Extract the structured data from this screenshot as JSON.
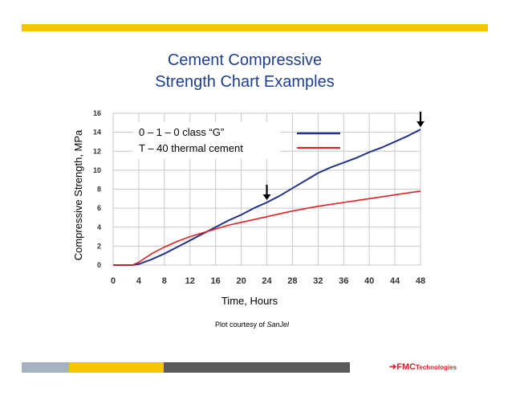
{
  "slide": {
    "title_line1": "Cement Compressive",
    "title_line2": "Strength Chart Examples",
    "caption_prefix": "Plot courtesy of ",
    "caption_source": "SanJel",
    "logo_text": "FMC",
    "logo_suffix": "Technologies"
  },
  "colors": {
    "accent_yellow": "#f5c500",
    "title_blue": "#1f3f93",
    "bar_gray": "#a6b2c2",
    "bar_dark": "#5a5a5a",
    "series_blue": "#24338c",
    "series_red": "#e32222",
    "logo_red": "#d4232a"
  },
  "chart_data": {
    "type": "line",
    "xlabel": "Time, Hours",
    "ylabel": "Compressive  Strength, MPa",
    "xlim": [
      0,
      48
    ],
    "ylim": [
      0,
      16
    ],
    "xticks": [
      0,
      4,
      8,
      12,
      16,
      20,
      24,
      28,
      32,
      36,
      40,
      44,
      48
    ],
    "yticks": [
      0,
      2,
      4,
      6,
      8,
      10,
      12,
      14,
      16
    ],
    "grid": true,
    "legend": {
      "line1": "0 – 1 – 0  class “G”",
      "line2": "T – 40 thermal cement",
      "placement": "top-left"
    },
    "series": [
      {
        "name": "0 – 1 – 0  class “G”",
        "color": "#24338c",
        "x": [
          0,
          3,
          4,
          6,
          8,
          10,
          12,
          14,
          16,
          18,
          20,
          22,
          24,
          26,
          28,
          30,
          32,
          34,
          36,
          38,
          40,
          42,
          44,
          46,
          48
        ],
        "y": [
          0,
          0,
          0.1,
          0.6,
          1.2,
          1.9,
          2.6,
          3.3,
          4.0,
          4.7,
          5.3,
          6.0,
          6.6,
          7.3,
          8.1,
          8.9,
          9.7,
          10.3,
          10.8,
          11.3,
          11.9,
          12.4,
          13.0,
          13.6,
          14.3
        ]
      },
      {
        "name": "T – 40 thermal cement",
        "color": "#e32222",
        "x": [
          0,
          3,
          4,
          6,
          8,
          10,
          12,
          14,
          16,
          18,
          20,
          22,
          24,
          26,
          28,
          30,
          32,
          34,
          36,
          38,
          40,
          42,
          44,
          46,
          48
        ],
        "y": [
          0,
          0,
          0.3,
          1.2,
          1.9,
          2.5,
          3.0,
          3.4,
          3.8,
          4.2,
          4.5,
          4.8,
          5.1,
          5.4,
          5.7,
          5.95,
          6.2,
          6.4,
          6.6,
          6.8,
          7.0,
          7.2,
          7.4,
          7.6,
          7.8
        ]
      }
    ],
    "annotations": [
      {
        "type": "arrow-down",
        "x": 24,
        "y": 6.6
      },
      {
        "type": "arrow-down",
        "x": 48,
        "y": 14.3
      }
    ]
  }
}
